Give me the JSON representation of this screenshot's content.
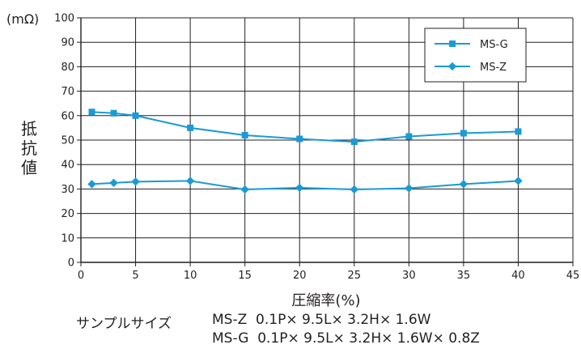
{
  "chart_data": {
    "type": "line",
    "xlabel": "圧縮率(%)",
    "ylabel": "抵抗値",
    "yunit": "(mΩ)",
    "xlim": [
      0,
      45
    ],
    "ylim": [
      0,
      100
    ],
    "xticks": [
      0,
      5,
      10,
      15,
      20,
      25,
      30,
      35,
      40,
      45
    ],
    "yticks": [
      0,
      10,
      20,
      30,
      40,
      50,
      60,
      70,
      80,
      90,
      100
    ],
    "grid": true,
    "legend_position": "top-right",
    "series": [
      {
        "name": "MS-G",
        "marker": "square",
        "color": "#1a9ad6",
        "x": [
          1,
          3,
          5,
          10,
          15,
          20,
          25,
          30,
          35,
          40
        ],
        "y": [
          61.5,
          61,
          60,
          55,
          52,
          50.5,
          49.3,
          51.5,
          52.8,
          53.5
        ]
      },
      {
        "name": "MS-Z",
        "marker": "diamond",
        "color": "#1a9ad6",
        "x": [
          1,
          3,
          5,
          10,
          15,
          20,
          25,
          30,
          35,
          40
        ],
        "y": [
          32,
          32.5,
          33,
          33.3,
          29.8,
          30.5,
          29.8,
          30.3,
          32,
          33.3
        ]
      }
    ]
  },
  "notes": {
    "label": "サンプルサイズ",
    "line1": "MS-Z  0.1P× 9.5L× 3.2H× 1.6W",
    "line2": "MS-G  0.1P× 9.5L× 3.2H× 1.6W× 0.8Z"
  }
}
